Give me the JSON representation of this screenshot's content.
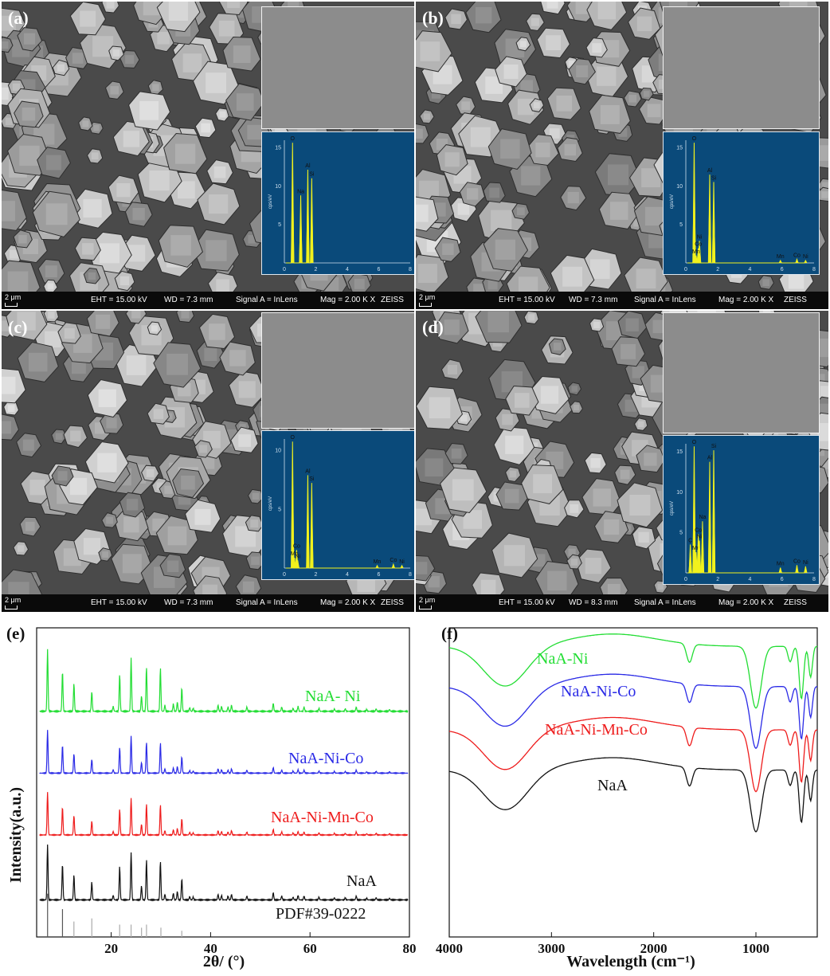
{
  "sem_panels": [
    {
      "label": "(a)",
      "footer": {
        "scale": "2 μm",
        "eht": "EHT = 15.00 kV",
        "wd": "WD = 7.3 mm",
        "signal": "Signal A = InLens",
        "mag": "Mag =  2.00 K X",
        "brand": "ZEISS"
      },
      "eds_ticks_y": [
        "5",
        "10",
        "15"
      ],
      "eds_ticks_x": [
        "0",
        "2",
        "4",
        "6",
        "8"
      ],
      "eds_ylabel": "cps/eV",
      "eds_peaks": [
        {
          "element": "O",
          "energy": 0.52,
          "height": 0.98
        },
        {
          "element": "Na",
          "energy": 1.04,
          "height": 0.55
        },
        {
          "element": "Al",
          "energy": 1.49,
          "height": 0.76
        },
        {
          "element": "Si",
          "energy": 1.74,
          "height": 0.69
        }
      ]
    },
    {
      "label": "(b)",
      "footer": {
        "scale": "2 μm",
        "eht": "EHT = 15.00 kV",
        "wd": "WD = 7.3 mm",
        "signal": "Signal A = InLens",
        "mag": "Mag =  2.00 K X",
        "brand": "ZEISS"
      },
      "eds_ticks_y": [
        "5",
        "10",
        "15"
      ],
      "eds_ticks_x": [
        "0",
        "2",
        "4",
        "6",
        "8"
      ],
      "eds_ylabel": "cps/eV",
      "eds_peaks": [
        {
          "element": "O",
          "energy": 0.52,
          "height": 0.98
        },
        {
          "element": "Ni",
          "energy": 0.85,
          "height": 0.18
        },
        {
          "element": "Co",
          "energy": 0.78,
          "height": 0.12
        },
        {
          "element": "Mn",
          "energy": 0.64,
          "height": 0.06
        },
        {
          "element": "Al",
          "energy": 1.49,
          "height": 0.72
        },
        {
          "element": "Si",
          "energy": 1.74,
          "height": 0.66
        },
        {
          "element": "Mn",
          "energy": 5.9,
          "height": 0.02
        },
        {
          "element": "Co",
          "energy": 6.93,
          "height": 0.03
        },
        {
          "element": "Ni",
          "energy": 7.47,
          "height": 0.02
        }
      ]
    },
    {
      "label": "(c)",
      "footer": {
        "scale": "2 μm",
        "eht": "EHT = 15.00 kV",
        "wd": "WD = 7.3 mm",
        "signal": "Signal A = InLens",
        "mag": "Mag =  2.00 K X",
        "brand": "ZEISS"
      },
      "eds_ticks_y": [
        "5",
        "10"
      ],
      "eds_ticks_x": [
        "0",
        "2",
        "4",
        "6",
        "8"
      ],
      "eds_ylabel": "cps/eV",
      "eds_peaks": [
        {
          "element": "O",
          "energy": 0.52,
          "height": 0.98
        },
        {
          "element": "Co",
          "energy": 0.78,
          "height": 0.14
        },
        {
          "element": "Mn",
          "energy": 0.64,
          "height": 0.08
        },
        {
          "element": "Ni",
          "energy": 0.85,
          "height": 0.06
        },
        {
          "element": "Al",
          "energy": 1.49,
          "height": 0.72
        },
        {
          "element": "Si",
          "energy": 1.74,
          "height": 0.66
        },
        {
          "element": "Mn",
          "energy": 5.9,
          "height": 0.02
        },
        {
          "element": "Co",
          "energy": 6.93,
          "height": 0.03
        },
        {
          "element": "Ni",
          "energy": 7.47,
          "height": 0.02
        }
      ]
    },
    {
      "label": "(d)",
      "footer": {
        "scale": "2 μm",
        "eht": "EHT = 15.00 kV",
        "wd": "WD = 8.3 mm",
        "signal": "Signal A = InLens",
        "mag": "Mag =  2.00 K X",
        "brand": "ZEISS"
      },
      "eds_ticks_y": [
        "5",
        "10",
        "15"
      ],
      "eds_ticks_x": [
        "0",
        "2",
        "4",
        "6",
        "8"
      ],
      "eds_ylabel": "cps/eV",
      "eds_peaks": [
        {
          "element": "O",
          "energy": 0.52,
          "height": 0.98
        },
        {
          "element": "C",
          "energy": 0.28,
          "height": 0.22
        },
        {
          "element": "Mn",
          "energy": 0.64,
          "height": 0.16
        },
        {
          "element": "Co",
          "energy": 0.78,
          "height": 0.3
        },
        {
          "element": "Ni",
          "energy": 0.85,
          "height": 0.25
        },
        {
          "element": "Na",
          "energy": 1.04,
          "height": 0.4
        },
        {
          "element": "Al",
          "energy": 1.49,
          "height": 0.86
        },
        {
          "element": "Si",
          "energy": 1.74,
          "height": 0.95
        },
        {
          "element": "Mn",
          "energy": 5.9,
          "height": 0.04
        },
        {
          "element": "Co",
          "energy": 6.93,
          "height": 0.06
        },
        {
          "element": "Ni",
          "energy": 7.47,
          "height": 0.05
        }
      ]
    }
  ],
  "chart_data": [
    {
      "panel_label": "(e)",
      "type": "line",
      "xlabel": "2θ/ (°)",
      "ylabel": "Intensity(a.u.)",
      "xlim": [
        5,
        80
      ],
      "xticks": [
        "20",
        "40",
        "60",
        "80"
      ],
      "reference_label": "PDF#39-0222",
      "reference_peaks": [
        7.2,
        10.2,
        12.5,
        16.1,
        21.7,
        24.0,
        26.1,
        27.1,
        30.0,
        34.2
      ],
      "series": [
        {
          "name": "NaA- Ni",
          "color": "#22dd33",
          "baseline": 0.73,
          "scale": 0.2
        },
        {
          "name": "NaA-Ni-Co",
          "color": "#2a2ae6",
          "baseline": 0.53,
          "scale": 0.14
        },
        {
          "name": "NaA-Ni-Mn-Co",
          "color": "#ee1c1c",
          "baseline": 0.33,
          "scale": 0.14
        },
        {
          "name": "NaA",
          "color": "#111111",
          "baseline": 0.12,
          "scale": 0.18
        }
      ],
      "peaks": [
        {
          "x": 7.2,
          "h": 1.0
        },
        {
          "x": 10.2,
          "h": 0.65
        },
        {
          "x": 12.5,
          "h": 0.45
        },
        {
          "x": 16.1,
          "h": 0.32
        },
        {
          "x": 20.4,
          "h": 0.08
        },
        {
          "x": 21.7,
          "h": 0.6
        },
        {
          "x": 24.0,
          "h": 0.86
        },
        {
          "x": 26.1,
          "h": 0.25
        },
        {
          "x": 27.1,
          "h": 0.72
        },
        {
          "x": 29.9,
          "h": 0.7
        },
        {
          "x": 30.8,
          "h": 0.1
        },
        {
          "x": 32.5,
          "h": 0.12
        },
        {
          "x": 33.3,
          "h": 0.15
        },
        {
          "x": 34.2,
          "h": 0.38
        },
        {
          "x": 35.8,
          "h": 0.06
        },
        {
          "x": 36.5,
          "h": 0.05
        },
        {
          "x": 41.5,
          "h": 0.1
        },
        {
          "x": 42.2,
          "h": 0.08
        },
        {
          "x": 43.5,
          "h": 0.07
        },
        {
          "x": 44.2,
          "h": 0.1
        },
        {
          "x": 47.3,
          "h": 0.07
        },
        {
          "x": 52.6,
          "h": 0.13
        },
        {
          "x": 54.3,
          "h": 0.07
        },
        {
          "x": 56.6,
          "h": 0.05
        },
        {
          "x": 57.6,
          "h": 0.08
        },
        {
          "x": 58.8,
          "h": 0.07
        },
        {
          "x": 61.8,
          "h": 0.05
        },
        {
          "x": 64.9,
          "h": 0.04
        },
        {
          "x": 67.1,
          "h": 0.04
        },
        {
          "x": 69.3,
          "h": 0.07
        },
        {
          "x": 71.4,
          "h": 0.03
        },
        {
          "x": 73.3,
          "h": 0.04
        },
        {
          "x": 76.0,
          "h": 0.03
        }
      ]
    },
    {
      "panel_label": "(f)",
      "type": "line",
      "xlabel": "Wavelength (cm⁻¹)",
      "ylabel": "",
      "xlim": [
        4000,
        400
      ],
      "xticks": [
        "4000",
        "3000",
        "2000",
        "1000"
      ],
      "series": [
        {
          "name": "NaA-Ni",
          "color": "#22dd33",
          "offset": 0.0
        },
        {
          "name": "NaA-Ni-Co",
          "color": "#2a2ae6",
          "offset": 0.13
        },
        {
          "name": "NaA-Ni-Mn-Co",
          "color": "#ee1c1c",
          "offset": 0.27
        },
        {
          "name": "NaA",
          "color": "#111111",
          "offset": 0.4
        }
      ]
    }
  ]
}
